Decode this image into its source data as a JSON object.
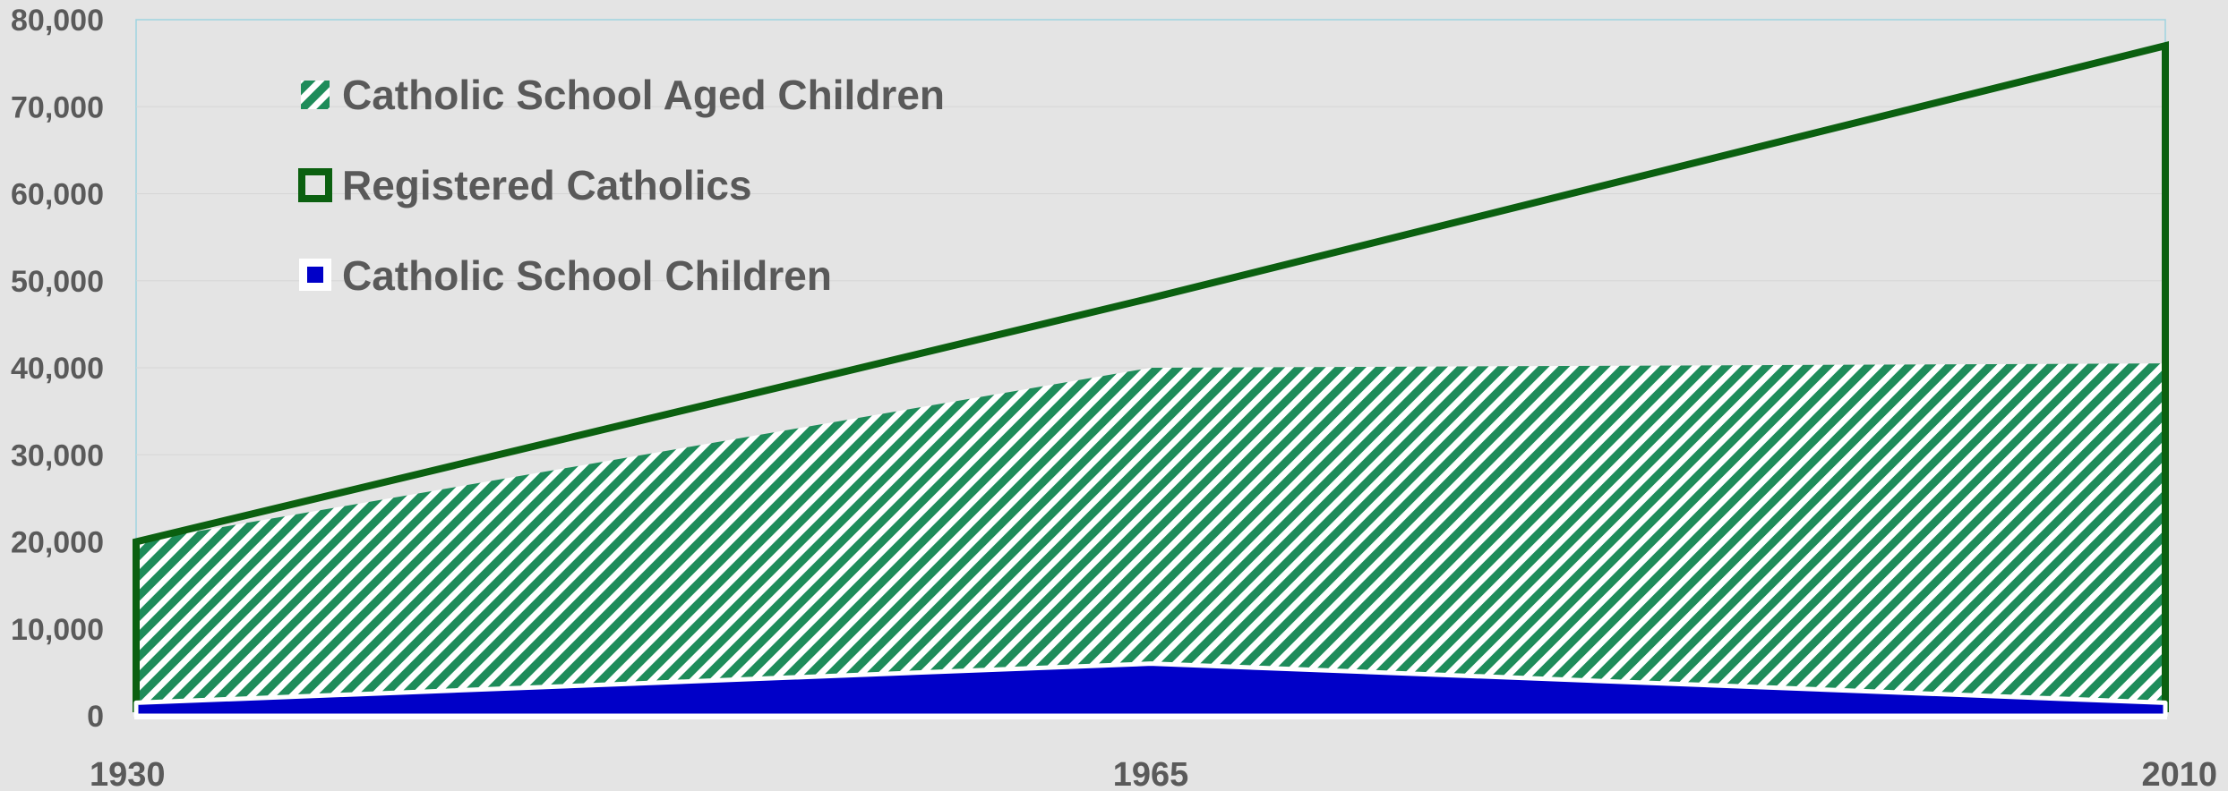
{
  "chart_data": {
    "type": "area",
    "x": [
      "1930",
      "1965",
      "2010"
    ],
    "ylim": [
      0,
      80000
    ],
    "yticks": [
      "0",
      "10,000",
      "20,000",
      "30,000",
      "40,000",
      "50,000",
      "60,000",
      "70,000",
      "80,000"
    ],
    "grid": true,
    "legend_position": "top-left",
    "series": [
      {
        "name": "Catholic School Aged Children",
        "style": "hatched-area",
        "color": "#1e8c5a",
        "values": [
          20000,
          40000,
          40500
        ]
      },
      {
        "name": "Registered Catholics",
        "style": "line",
        "color": "#0b6010",
        "values": [
          20000,
          48000,
          77000
        ]
      },
      {
        "name": "Catholic School Children",
        "style": "solid-area",
        "color": "#0000c8",
        "values": [
          1500,
          6000,
          1500
        ]
      }
    ]
  }
}
